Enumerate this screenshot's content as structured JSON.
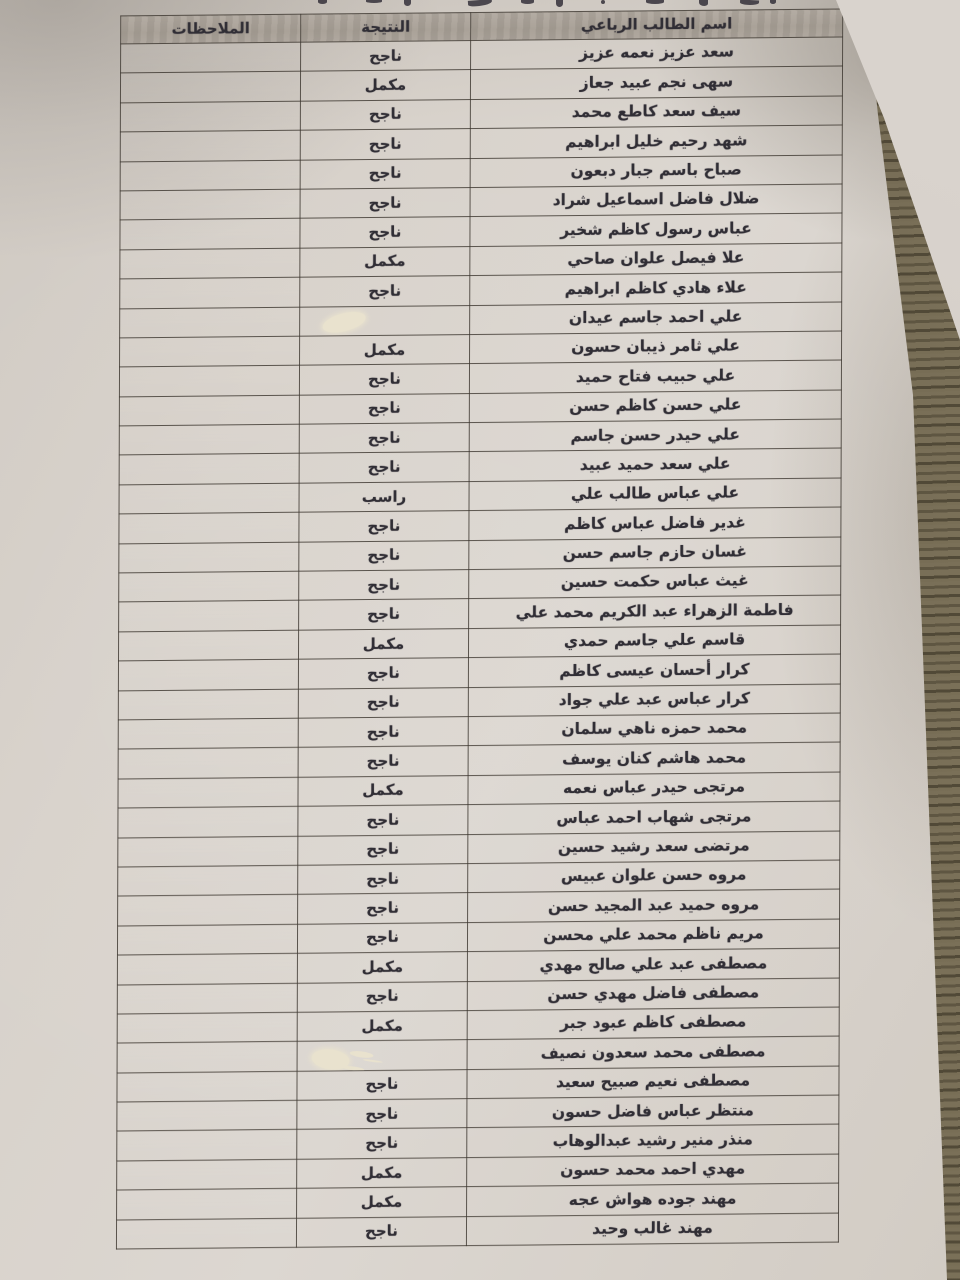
{
  "table": {
    "headers": {
      "name": "اسم الطالب الرباعي",
      "result": "النتيجة",
      "notes": "الملاحظات"
    },
    "rows": [
      {
        "name": "سعد عزيز نعمه عزيز",
        "result": "ناجح"
      },
      {
        "name": "سهى نجم عبيد جعاز",
        "result": "مكمل"
      },
      {
        "name": "سيف سعد كاطع محمد",
        "result": "ناجح"
      },
      {
        "name": "شهد رحيم خليل ابراهيم",
        "result": "ناجح"
      },
      {
        "name": "صباح باسم جبار دبعون",
        "result": "ناجح"
      },
      {
        "name": "ضلال فاضل اسماعيل شراد",
        "result": "ناجح"
      },
      {
        "name": "عباس رسول كاظم شخير",
        "result": "ناجح"
      },
      {
        "name": "علا فيصل علوان صاحي",
        "result": "مكمل"
      },
      {
        "name": "علاء هادي كاظم ابراهيم",
        "result": "ناجح"
      },
      {
        "name": "علي احمد جاسم عيدان",
        "result": "",
        "correction_mark": true
      },
      {
        "name": "علي ثامر ذيبان حسون",
        "result": "مكمل"
      },
      {
        "name": "علي حبيب فتاح حميد",
        "result": "ناجح"
      },
      {
        "name": "علي حسن كاظم حسن",
        "result": "ناجح"
      },
      {
        "name": "علي حيدر حسن جاسم",
        "result": "ناجح"
      },
      {
        "name": "علي سعد حميد عبيد",
        "result": "ناجح"
      },
      {
        "name": "علي عباس طالب علي",
        "result": "راسب"
      },
      {
        "name": "غدير فاضل عباس كاظم",
        "result": "ناجح"
      },
      {
        "name": "غسان حازم جاسم حسن",
        "result": "ناجح"
      },
      {
        "name": "غيث عباس حكمت حسين",
        "result": "ناجح"
      },
      {
        "name": "فاطمة الزهراء عبد الكريم محمد علي",
        "result": "ناجح"
      },
      {
        "name": "قاسم علي جاسم حمدي",
        "result": "مكمل"
      },
      {
        "name": "كرار أحسان عيسى كاظم",
        "result": "ناجح"
      },
      {
        "name": "كرار عباس عبد علي جواد",
        "result": "ناجح"
      },
      {
        "name": "محمد حمزه ناهي سلمان",
        "result": "ناجح"
      },
      {
        "name": "محمد هاشم كنان يوسف",
        "result": "ناجح"
      },
      {
        "name": "مرتجى حيدر عباس نعمه",
        "result": "مكمل"
      },
      {
        "name": "مرتجى شهاب احمد عباس",
        "result": "ناجح"
      },
      {
        "name": "مرتضى سعد رشيد حسين",
        "result": "ناجح"
      },
      {
        "name": "مروه حسن علوان عبيس",
        "result": "ناجح"
      },
      {
        "name": "مروه حميد عبد المجيد حسن",
        "result": "ناجح"
      },
      {
        "name": "مريم ناظم محمد علي محسن",
        "result": "ناجح"
      },
      {
        "name": "مصطفى عبد علي صالح مهدي",
        "result": "مكمل"
      },
      {
        "name": "مصطفى فاضل مهدي حسن",
        "result": "ناجح"
      },
      {
        "name": "مصطفى كاظم عبود جبر",
        "result": "مكمل"
      },
      {
        "name": "مصطفى محمد سعدون نصيف",
        "result": "",
        "correction_mark": true
      },
      {
        "name": "مصطفى نعيم صبيح سعيد",
        "result": "ناجح"
      },
      {
        "name": "منتظر عباس فاضل حسون",
        "result": "ناجح"
      },
      {
        "name": "منذر منير رشيد عبدالوهاب",
        "result": "ناجح"
      },
      {
        "name": "مهدي احمد محمد حسون",
        "result": "مكمل"
      },
      {
        "name": "مهند جوده هواش عجه",
        "result": "مكمل"
      },
      {
        "name": "مهند غالب وحيد",
        "result": "ناجح"
      }
    ]
  },
  "colors": {
    "ink": "#2e2b33",
    "paper": "#d8d2cb",
    "header_band": "#aea69d",
    "table_line": "#3a342d",
    "background_surface": "#665d45",
    "correction_fluid": "#ece5d0"
  }
}
